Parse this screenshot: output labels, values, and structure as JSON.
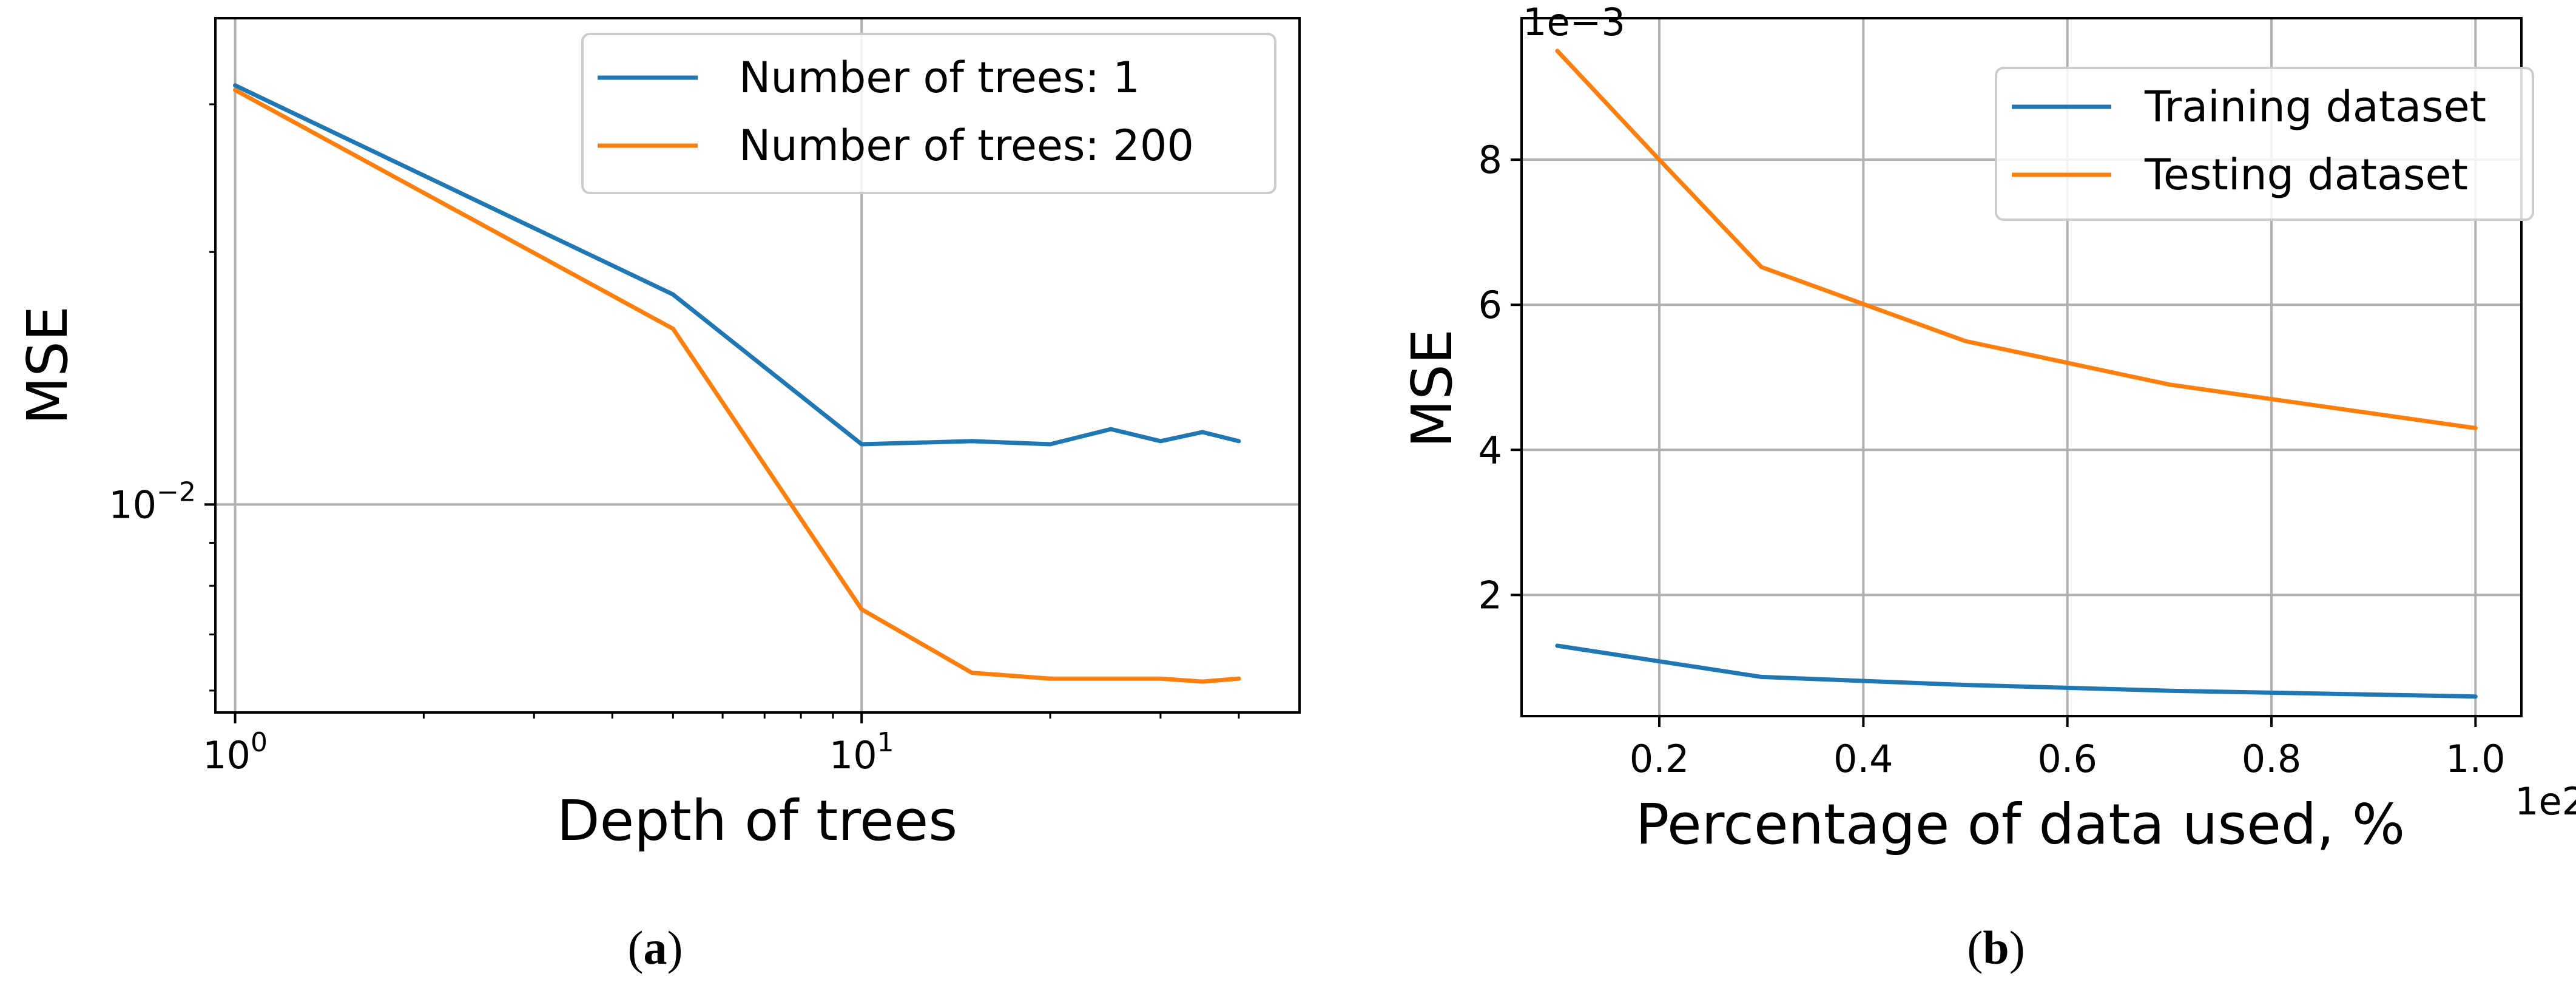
{
  "chart_data": [
    {
      "type": "line",
      "panel": "(a)",
      "caption_open": "(",
      "caption_letter": "a",
      "caption_close": ")",
      "xlabel": "Depth of trees",
      "ylabel": "MSE",
      "xscale": "log",
      "yscale": "log",
      "xlim": [
        0.93,
        50
      ],
      "ylim": [
        0.00565,
        0.038
      ],
      "xticks": [
        {
          "value": 1,
          "base": "10",
          "exp": "0"
        },
        {
          "value": 10,
          "base": "10",
          "exp": "1"
        }
      ],
      "yticks": [
        {
          "value": 0.01,
          "base": "10",
          "exp": "−2"
        }
      ],
      "grid": true,
      "legend_position": "top-right",
      "series": [
        {
          "name": "Number of trees: 1",
          "color": "#1f77b4",
          "x": [
            1,
            5,
            10,
            15,
            20,
            25,
            30,
            35,
            40
          ],
          "y": [
            0.0316,
            0.0178,
            0.0118,
            0.0119,
            0.0118,
            0.0123,
            0.0119,
            0.0122,
            0.0119
          ]
        },
        {
          "name": "Number of trees: 200",
          "color": "#ff7f0e",
          "x": [
            1,
            5,
            10,
            15,
            20,
            25,
            30,
            35,
            40
          ],
          "y": [
            0.0312,
            0.0162,
            0.0075,
            0.0063,
            0.0062,
            0.0062,
            0.0062,
            0.00615,
            0.0062
          ]
        }
      ]
    },
    {
      "type": "line",
      "panel": "(b)",
      "caption_open": "(",
      "caption_letter": "b",
      "caption_close": ")",
      "xlabel": "Percentage of data used, %",
      "ylabel": "MSE",
      "x_offset_text": "1e2",
      "y_offset_text": "1e−3",
      "xlim": [
        0.065,
        1.045
      ],
      "ylim": [
        0.33,
        9.95
      ],
      "xticks": [
        {
          "value": 0.2,
          "label": "0.2"
        },
        {
          "value": 0.4,
          "label": "0.4"
        },
        {
          "value": 0.6,
          "label": "0.6"
        },
        {
          "value": 0.8,
          "label": "0.8"
        },
        {
          "value": 1.0,
          "label": "1.0"
        }
      ],
      "yticks": [
        {
          "value": 2,
          "label": "2"
        },
        {
          "value": 4,
          "label": "4"
        },
        {
          "value": 6,
          "label": "6"
        },
        {
          "value": 8,
          "label": "8"
        }
      ],
      "grid": true,
      "legend_position": "top-right",
      "series": [
        {
          "name": "Training dataset",
          "color": "#1f77b4",
          "x": [
            0.1,
            0.3,
            0.5,
            0.7,
            1.0
          ],
          "y": [
            1.3,
            0.87,
            0.76,
            0.68,
            0.6
          ]
        },
        {
          "name": "Testing dataset",
          "color": "#ff7f0e",
          "x": [
            0.1,
            0.2,
            0.3,
            0.5,
            0.7,
            1.0
          ],
          "y": [
            9.5,
            8.0,
            6.52,
            5.5,
            4.9,
            4.3
          ]
        }
      ]
    }
  ]
}
